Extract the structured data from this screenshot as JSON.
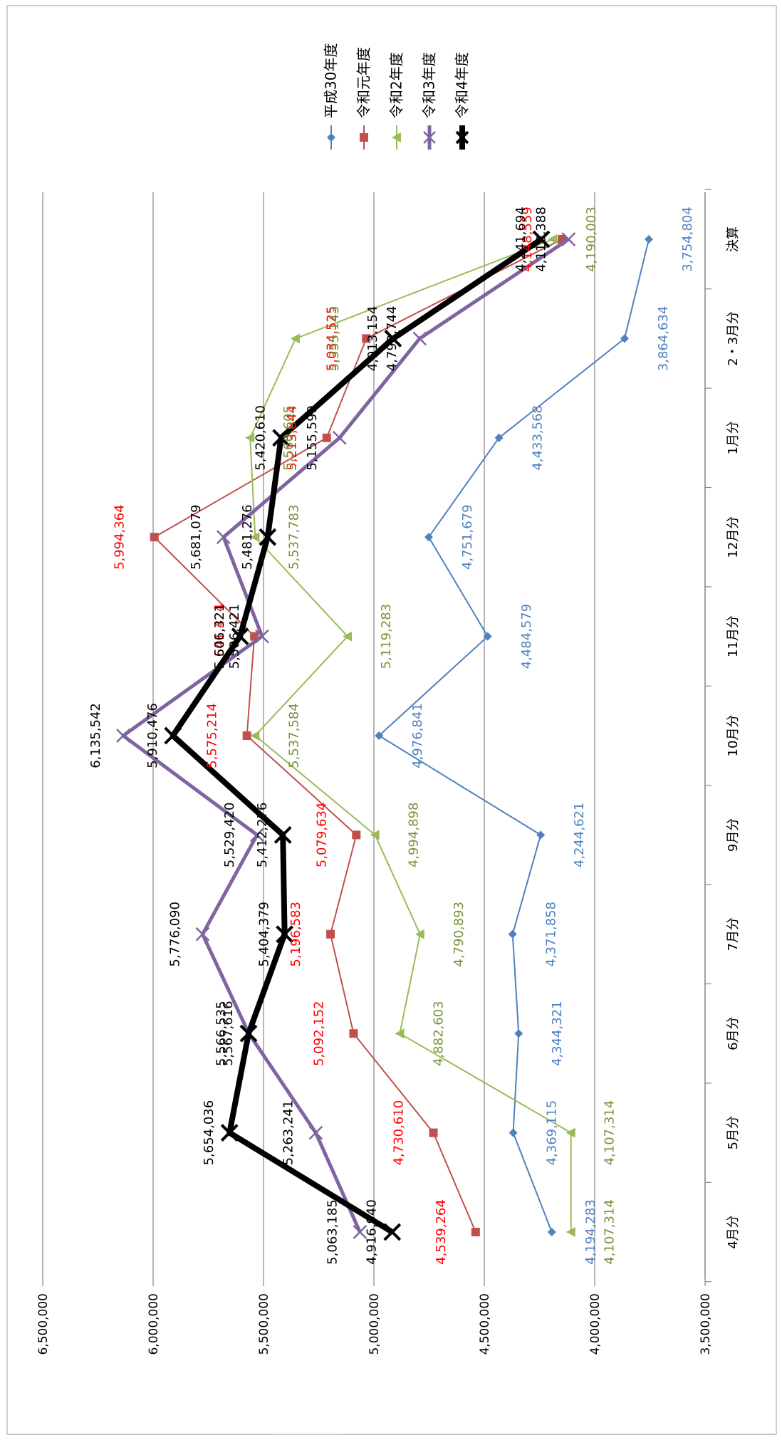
{
  "chart_data": {
    "type": "line",
    "orientation": "rotated-90-clockwise",
    "categories": [
      "4月分",
      "5月分",
      "6月分",
      "7月分",
      "9月分",
      "10月分",
      "11月分",
      "12月分",
      "1月分",
      "2・3月分",
      "決算"
    ],
    "ylim": [
      3500000,
      6500000
    ],
    "yticks": [
      "3,500,000",
      "4,000,000",
      "4,500,000",
      "5,000,000",
      "5,500,000",
      "6,000,000",
      "6,500,000"
    ],
    "grid": true,
    "legend_position": "top-right",
    "series": [
      {
        "name": "平成30年度",
        "color": "#4f81bd",
        "marker": "diamond",
        "values": [
          4194283,
          4369115,
          4344321,
          4371858,
          4244621,
          4976841,
          4484579,
          4751679,
          4433568,
          3864634,
          3754804
        ],
        "labels": [
          "4,194,283",
          "4,369,115",
          "4,344,321",
          "4,371,858",
          "4,244,621",
          "4,976,841",
          "4,484,579",
          "4,751,679",
          "4,433,568",
          "3,864,634",
          "3,754,804"
        ],
        "label_color": "#4f81bd"
      },
      {
        "name": "令和元年度",
        "color": "#c0504d",
        "marker": "square",
        "values": [
          4539264,
          4730610,
          5092152,
          5196583,
          5079634,
          5575214,
          5541424,
          5994364,
          5213844,
          5034525,
          4148559
        ],
        "labels": [
          "4,539,264",
          "4,730,610",
          "5,092,152",
          "5,196,583",
          "5,079,634",
          "5,575,214",
          "5,541,424",
          "5,994,364",
          "5,213,844",
          "5,034,525",
          "4,148,559"
        ],
        "label_color": "#ff0000"
      },
      {
        "name": "令和2年度",
        "color": "#9bbb59",
        "marker": "triangle",
        "values": [
          4107314,
          4107314,
          4882603,
          4790893,
          4994898,
          5537584,
          5119283,
          5537783,
          5560605,
          5355143,
          4190003
        ],
        "labels": [
          "4,107,314",
          "4,107,314",
          "4,882,603",
          "4,790,893",
          "4,994,898",
          "5,537,584",
          "5,119,283",
          "5,537,783",
          "5,560,605",
          "5,355,143",
          "4,190,003"
        ],
        "label_color": "#77933c"
      },
      {
        "name": "令和3年度",
        "color": "#8064a2",
        "marker": "x",
        "values": [
          5063185,
          5263241,
          5566535,
          5776090,
          5529420,
          6135542,
          5506421,
          5681079,
          5155599,
          4792744,
          4118388
        ],
        "labels": [
          "5,063,185",
          "5,263,241",
          "5,566,535",
          "5,776,090",
          "5,529,420",
          "6,135,542",
          "5,506,421",
          "5,681,079",
          "5,155,599",
          "4,792,744",
          "4,118,388"
        ],
        "label_color": "#000000"
      },
      {
        "name": "令和4年度",
        "color": "#000000",
        "marker": "x",
        "values": [
          4916940,
          5654036,
          5567616,
          5404379,
          5412276,
          5910476,
          5606321,
          5481276,
          5420610,
          4913154,
          4241694
        ],
        "labels": [
          "4,916,940",
          "5,654,036",
          "5,567,616",
          "5,404,379",
          "5,412,276",
          "5,910,476",
          "5,606,321",
          "5,481,276",
          "5,420,610",
          "4,913,154",
          "4,241,694"
        ],
        "label_color": "#000000"
      }
    ]
  }
}
